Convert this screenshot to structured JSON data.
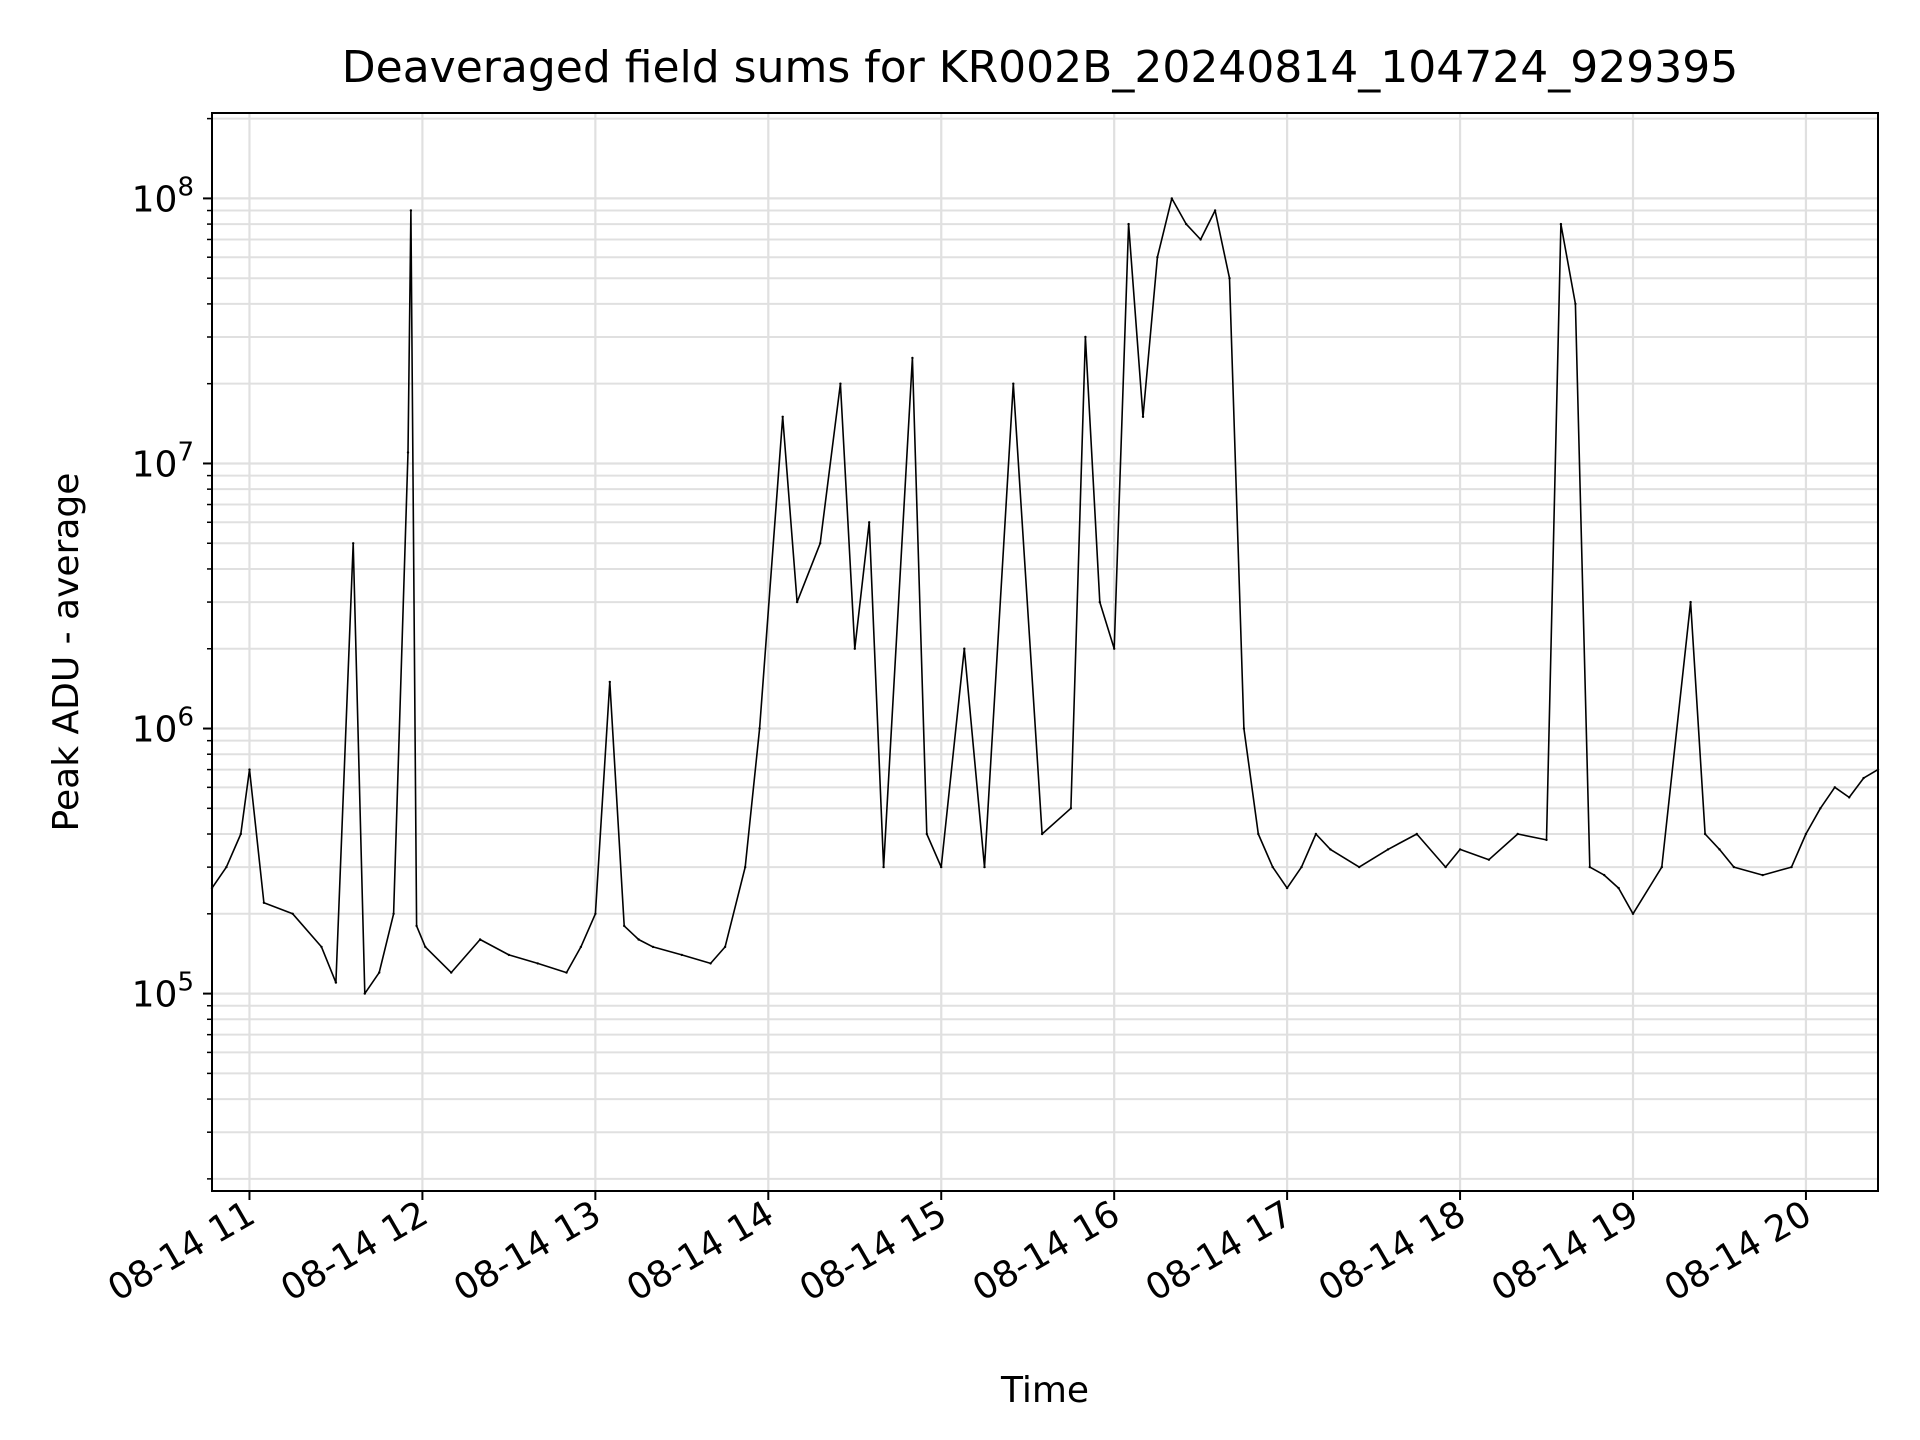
{
  "chart_data": {
    "type": "line",
    "title": "Deaveraged field sums for KR002B_20240814_104724_929395",
    "xlabel": "Time",
    "ylabel": "Peak ADU - average",
    "y_scale": "log",
    "ylim": [
      18000,
      210000000
    ],
    "xlim": [
      "2024-08-14 10:47",
      "2024-08-14 20:25"
    ],
    "grid": true,
    "legend": "none",
    "x_ticks": [
      "08-14 11",
      "08-14 12",
      "08-14 13",
      "08-14 14",
      "08-14 15",
      "08-14 16",
      "08-14 17",
      "08-14 18",
      "08-14 19",
      "08-14 20"
    ],
    "y_ticks": [
      {
        "base": "10",
        "exp": "5",
        "value": 100000
      },
      {
        "base": "10",
        "exp": "6",
        "value": 1000000
      },
      {
        "base": "10",
        "exp": "7",
        "value": 10000000
      },
      {
        "base": "10",
        "exp": "8",
        "value": 100000000
      }
    ],
    "line_color": "#000000",
    "grid_color": "#e0e0e0",
    "series": [
      {
        "x": [
          "10:47",
          "10:52",
          "10:57",
          "11:00",
          "11:05",
          "11:15",
          "11:25",
          "11:30",
          "11:36",
          "11:40",
          "11:45",
          "11:50",
          "11:55",
          "11:56",
          "11:58",
          "12:01",
          "12:10",
          "12:20",
          "12:30",
          "12:40",
          "12:50",
          "12:55",
          "13:00",
          "13:05",
          "13:10",
          "13:15",
          "13:20",
          "13:30",
          "13:40",
          "13:45",
          "13:52",
          "13:57",
          "14:05",
          "14:10",
          "14:18",
          "14:25",
          "14:30",
          "14:35",
          "14:40",
          "14:50",
          "14:55",
          "15:00",
          "15:08",
          "15:15",
          "15:25",
          "15:35",
          "15:45",
          "15:50",
          "15:55",
          "16:00",
          "16:05",
          "16:10",
          "16:15",
          "16:20",
          "16:25",
          "16:30",
          "16:35",
          "16:40",
          "16:45",
          "16:50",
          "16:55",
          "17:00",
          "17:05",
          "17:10",
          "17:15",
          "17:25",
          "17:35",
          "17:45",
          "17:55",
          "18:00",
          "18:10",
          "18:20",
          "18:30",
          "18:35",
          "18:40",
          "18:45",
          "18:50",
          "18:55",
          "19:00",
          "19:10",
          "19:20",
          "19:25",
          "19:30",
          "19:35",
          "19:45",
          "19:55",
          "20:00",
          "20:05",
          "20:10",
          "20:15",
          "20:20",
          "20:25"
        ],
        "y": [
          250000,
          300000,
          400000,
          700000,
          220000,
          200000,
          150000,
          110000,
          5000000,
          100000,
          120000,
          200000,
          11000000,
          90000000,
          180000,
          150000,
          120000,
          160000,
          140000,
          130000,
          120000,
          150000,
          200000,
          1500000,
          180000,
          160000,
          150000,
          140000,
          130000,
          150000,
          300000,
          1000000,
          15000000,
          3000000,
          5000000,
          20000000,
          2000000,
          6000000,
          300000,
          25000000,
          400000,
          300000,
          2000000,
          300000,
          20000000,
          400000,
          500000,
          30000000,
          3000000,
          2000000,
          80000000,
          15000000,
          60000000,
          100000000,
          80000000,
          70000000,
          90000000,
          50000000,
          1000000,
          400000,
          300000,
          250000,
          300000,
          400000,
          350000,
          300000,
          350000,
          400000,
          300000,
          350000,
          320000,
          400000,
          380000,
          80000000,
          40000000,
          300000,
          280000,
          250000,
          200000,
          300000,
          3000000,
          400000,
          350000,
          300000,
          280000,
          300000,
          400000,
          500000,
          600000,
          550000,
          650000,
          700000
        ]
      }
    ]
  }
}
